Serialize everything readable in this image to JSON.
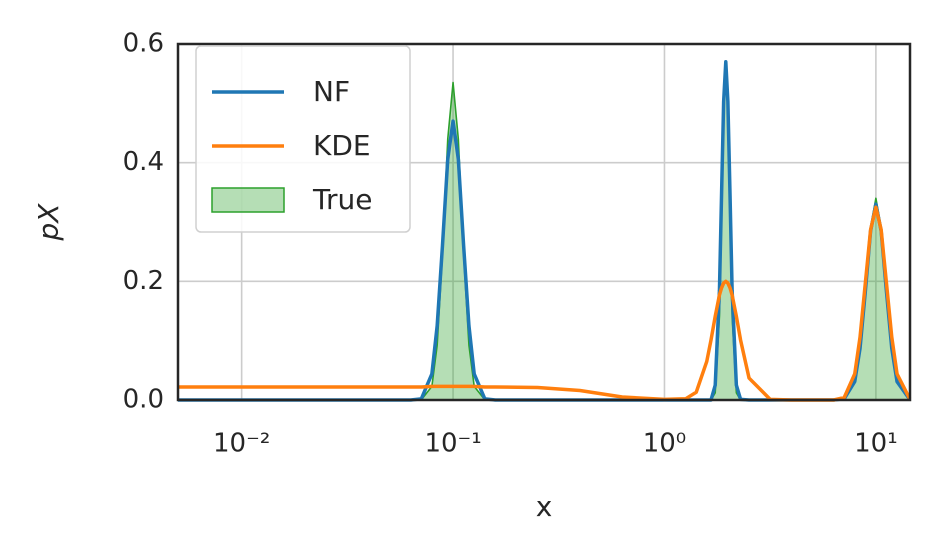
{
  "chart_data": {
    "type": "line",
    "xlabel": "x",
    "ylabel": "pX",
    "xscale": "log",
    "grid": true,
    "legend": "upper left",
    "xlim": [
      0.005,
      14.5
    ],
    "ylim": [
      0,
      0.6
    ],
    "xticks": [
      {
        "value": 0.01,
        "label": "10⁻²"
      },
      {
        "value": 0.1,
        "label": "10⁻¹"
      },
      {
        "value": 1,
        "label": "10⁰"
      },
      {
        "value": 10,
        "label": "10¹"
      }
    ],
    "yticks": [
      {
        "value": 0,
        "label": "0.0"
      },
      0.2,
      0.4,
      0.6
    ],
    "x": [
      0.005,
      0.01,
      0.0316,
      0.0501,
      0.0631,
      0.0708,
      0.0794,
      0.0841,
      0.0891,
      0.0944,
      0.1,
      0.1059,
      0.1122,
      0.1189,
      0.1259,
      0.1413,
      0.1585,
      0.2512,
      0.3981,
      0.631,
      1,
      1.259,
      1.413,
      1.585,
      1.66,
      1.738,
      1.82,
      1.862,
      1.905,
      1.95,
      1.995,
      2.042,
      2.089,
      2.188,
      2.291,
      2.512,
      3.162,
      3.981,
      5.012,
      6.31,
      7.079,
      7.943,
      8.414,
      8.913,
      9.441,
      10,
      10.59,
      11.22,
      11.89,
      12.59,
      14.45
    ],
    "series": [
      {
        "name": "NF",
        "color": "#1f77b4",
        "style": "line",
        "values": [
          0,
          0,
          0,
          0,
          0,
          0.002,
          0.044,
          0.125,
          0.26,
          0.406,
          0.47,
          0.406,
          0.26,
          0.125,
          0.044,
          0.002,
          0,
          0,
          0,
          0,
          0,
          0,
          0,
          0,
          0,
          0.025,
          0.185,
          0.346,
          0.503,
          0.57,
          0.503,
          0.346,
          0.185,
          0.025,
          0.001,
          0,
          0,
          0,
          0,
          0,
          0.002,
          0.031,
          0.087,
          0.183,
          0.285,
          0.33,
          0.285,
          0.183,
          0.087,
          0.031,
          0.001
        ]
      },
      {
        "name": "KDE",
        "color": "#ff7f0e",
        "style": "line",
        "values": [
          0.022,
          0.022,
          0.022,
          0.022,
          0.022,
          0.022,
          0.023,
          0.023,
          0.023,
          0.023,
          0.023,
          0.023,
          0.023,
          0.023,
          0.023,
          0.022,
          0.022,
          0.021,
          0.016,
          0.005,
          0.001,
          0.002,
          0.013,
          0.065,
          0.101,
          0.141,
          0.177,
          0.189,
          0.197,
          0.2,
          0.197,
          0.189,
          0.177,
          0.141,
          0.101,
          0.037,
          0.001,
          0,
          0,
          0,
          0.004,
          0.044,
          0.106,
          0.197,
          0.287,
          0.325,
          0.287,
          0.197,
          0.106,
          0.044,
          0.002
        ]
      },
      {
        "name": "True",
        "color": "#2ca02c",
        "style": "area",
        "values": [
          0,
          0,
          0,
          0,
          0,
          0.0005,
          0.023,
          0.092,
          0.245,
          0.44,
          0.535,
          0.44,
          0.245,
          0.092,
          0.023,
          0.0005,
          0,
          0,
          0,
          0,
          0,
          0,
          0,
          0,
          0,
          0.012,
          0.141,
          0.305,
          0.484,
          0.565,
          0.484,
          0.305,
          0.141,
          0.012,
          0,
          0,
          0,
          0,
          0,
          0,
          0.001,
          0.029,
          0.085,
          0.184,
          0.291,
          0.34,
          0.291,
          0.184,
          0.085,
          0.029,
          0.001
        ]
      }
    ]
  }
}
